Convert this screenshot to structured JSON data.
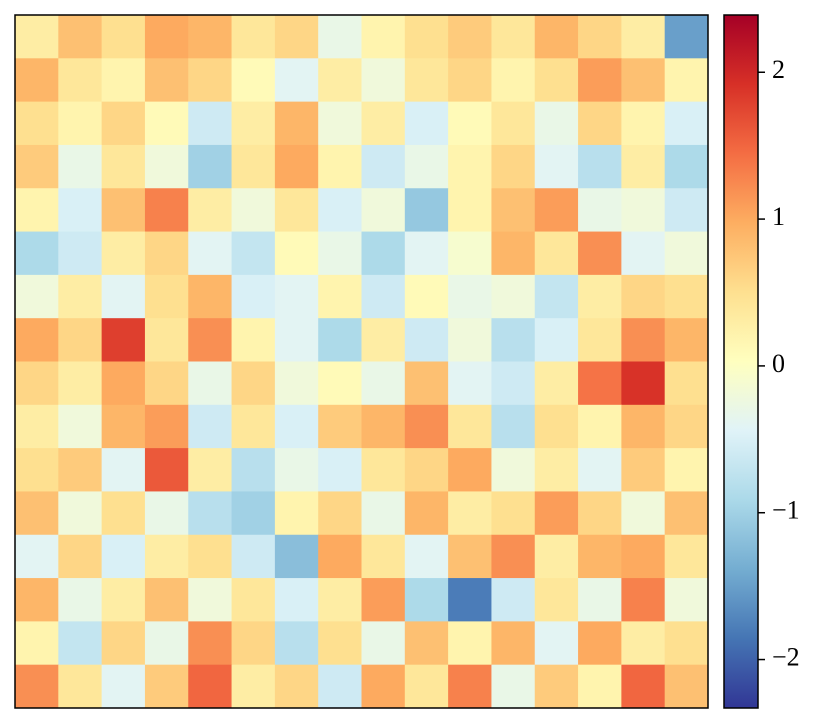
{
  "chart_data": {
    "type": "heatmap",
    "colormap": [
      "#313695",
      "#4575b4",
      "#74add1",
      "#abd9e9",
      "#e0f3f8",
      "#ffffbf",
      "#fee090",
      "#fdae61",
      "#f46d43",
      "#d73027",
      "#a50026"
    ],
    "clim": [
      -2.33,
      2.39
    ],
    "cticks": [
      {
        "value": -2,
        "label": "−2"
      },
      {
        "value": -1,
        "label": "−1"
      },
      0,
      1,
      2
    ],
    "values": [
      [
        0.3,
        0.8,
        0.5,
        1.0,
        0.9,
        0.4,
        0.6,
        -0.3,
        0.2,
        0.5,
        0.7,
        0.4,
        0.9,
        0.6,
        0.3,
        -1.5
      ],
      [
        0.9,
        0.4,
        0.2,
        0.8,
        0.6,
        0.1,
        -0.4,
        0.3,
        -0.2,
        0.4,
        0.6,
        0.2,
        0.5,
        1.1,
        0.8,
        0.2
      ],
      [
        0.5,
        0.2,
        0.6,
        0.1,
        -0.6,
        0.3,
        0.9,
        -0.2,
        0.3,
        -0.5,
        0.1,
        0.4,
        -0.3,
        0.6,
        0.2,
        -0.5
      ],
      [
        0.7,
        -0.3,
        0.4,
        -0.2,
        -1.0,
        0.4,
        1.0,
        0.2,
        -0.6,
        -0.3,
        0.2,
        0.6,
        -0.4,
        -0.8,
        0.3,
        -0.9
      ],
      [
        0.2,
        -0.5,
        0.8,
        1.3,
        0.3,
        -0.2,
        0.4,
        -0.5,
        -0.2,
        -1.1,
        0.2,
        0.8,
        1.1,
        -0.3,
        -0.2,
        -0.6
      ],
      [
        -0.9,
        -0.6,
        0.3,
        0.6,
        -0.4,
        -0.7,
        0.1,
        -0.3,
        -0.9,
        -0.4,
        -0.1,
        0.9,
        0.4,
        1.2,
        -0.4,
        -0.2
      ],
      [
        -0.2,
        0.3,
        -0.4,
        0.5,
        0.9,
        -0.5,
        -0.4,
        0.2,
        -0.6,
        0.1,
        -0.3,
        -0.2,
        -0.7,
        0.3,
        0.6,
        0.5
      ],
      [
        1.0,
        0.6,
        1.8,
        0.4,
        1.2,
        0.2,
        -0.4,
        -0.9,
        0.3,
        -0.6,
        -0.2,
        -0.8,
        -0.5,
        0.4,
        1.2,
        0.9
      ],
      [
        0.6,
        0.3,
        1.0,
        0.6,
        -0.3,
        0.6,
        -0.2,
        0.1,
        -0.3,
        0.8,
        -0.4,
        -0.6,
        0.3,
        1.4,
        1.9,
        0.5
      ],
      [
        0.3,
        -0.2,
        0.9,
        1.1,
        -0.6,
        0.4,
        -0.5,
        0.7,
        0.9,
        1.2,
        0.4,
        -0.8,
        0.5,
        0.2,
        0.9,
        0.6
      ],
      [
        0.5,
        0.7,
        -0.4,
        1.6,
        0.3,
        -0.8,
        -0.3,
        -0.5,
        0.4,
        0.6,
        1.0,
        -0.2,
        0.3,
        -0.4,
        0.7,
        0.2
      ],
      [
        0.8,
        -0.2,
        0.5,
        -0.3,
        -0.8,
        -1.0,
        0.2,
        0.6,
        -0.3,
        0.9,
        0.3,
        0.5,
        1.1,
        0.6,
        -0.2,
        0.8
      ],
      [
        -0.4,
        0.6,
        -0.5,
        0.3,
        0.5,
        -0.6,
        -1.2,
        1.0,
        0.4,
        -0.4,
        0.8,
        1.2,
        0.3,
        0.9,
        1.0,
        0.4
      ],
      [
        0.9,
        -0.3,
        0.3,
        0.8,
        -0.2,
        0.4,
        -0.5,
        0.3,
        1.1,
        -0.9,
        -1.8,
        -0.6,
        0.4,
        -0.3,
        1.3,
        -0.2
      ],
      [
        0.2,
        -0.7,
        0.6,
        -0.3,
        1.2,
        0.6,
        -0.8,
        0.5,
        -0.3,
        0.8,
        0.2,
        0.9,
        -0.4,
        1.0,
        0.3,
        0.5
      ],
      [
        1.2,
        0.4,
        -0.4,
        0.7,
        1.5,
        0.3,
        0.6,
        -0.6,
        1.0,
        0.4,
        1.3,
        -0.3,
        0.7,
        0.2,
        1.5,
        0.8
      ]
    ]
  }
}
